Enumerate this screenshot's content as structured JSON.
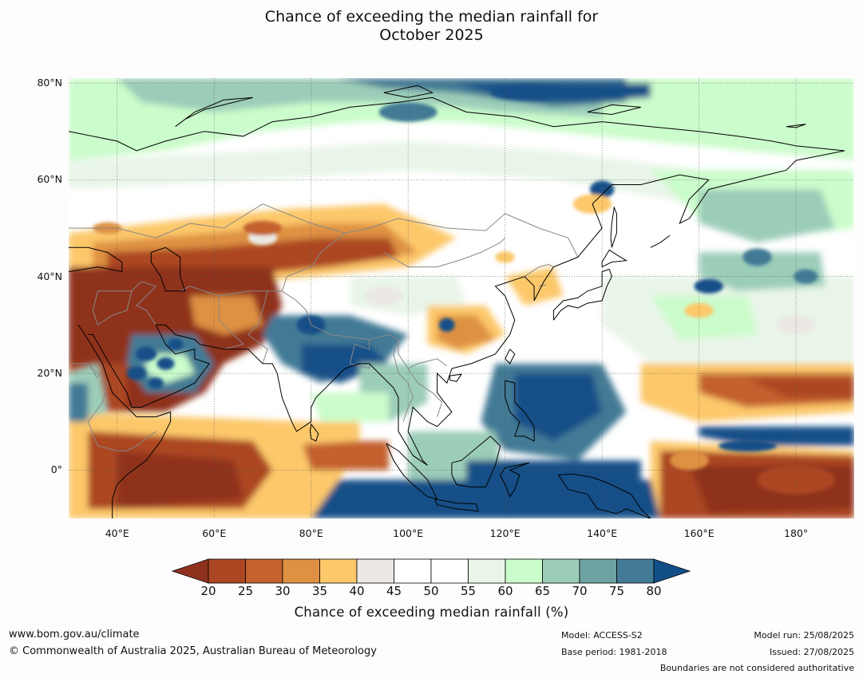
{
  "title": {
    "line1": "Chance of exceeding the median rainfall for",
    "line2": "October 2025"
  },
  "map": {
    "projection": "equirectangular",
    "lon_range": [
      30,
      192
    ],
    "lat_range": [
      -10,
      81
    ],
    "lat_labels": [
      "80°N",
      "60°N",
      "40°N",
      "20°N",
      "0°"
    ],
    "lon_labels": [
      "40°E",
      "60°E",
      "80°E",
      "100°E",
      "120°E",
      "140°E",
      "160°E",
      "180°"
    ],
    "colors": {
      "c15": "#8f321d",
      "c20": "#ac4623",
      "c25": "#c3612f",
      "c30": "#de9143",
      "c35": "#fcc86a",
      "c40": "#ebe8e3",
      "c45": "#ffffff",
      "c50": "#ffffff",
      "c55": "#e9f5e8",
      "c60": "#cbfccb",
      "c65": "#9ccdb9",
      "c70": "#6ea3a3",
      "c75": "#437a95",
      "c80": "#124f88"
    }
  },
  "colorbar": {
    "ticks": [
      "20",
      "25",
      "30",
      "35",
      "40",
      "45",
      "50",
      "55",
      "60",
      "65",
      "70",
      "75",
      "80"
    ],
    "label": "Chance of exceeding median rainfall (%)"
  },
  "footer": {
    "website": "www.bom.gov.au/climate",
    "copyright": "© Commonwealth of Australia 2025, Australian Bureau of Meteorology",
    "model": "Model: ACCESS-S2",
    "base_period": "Base period: 1981-2018",
    "model_run": "Model run: 25/08/2025",
    "issued": "Issued: 27/08/2025",
    "disclaimer": "Boundaries are not considered authoritative"
  }
}
